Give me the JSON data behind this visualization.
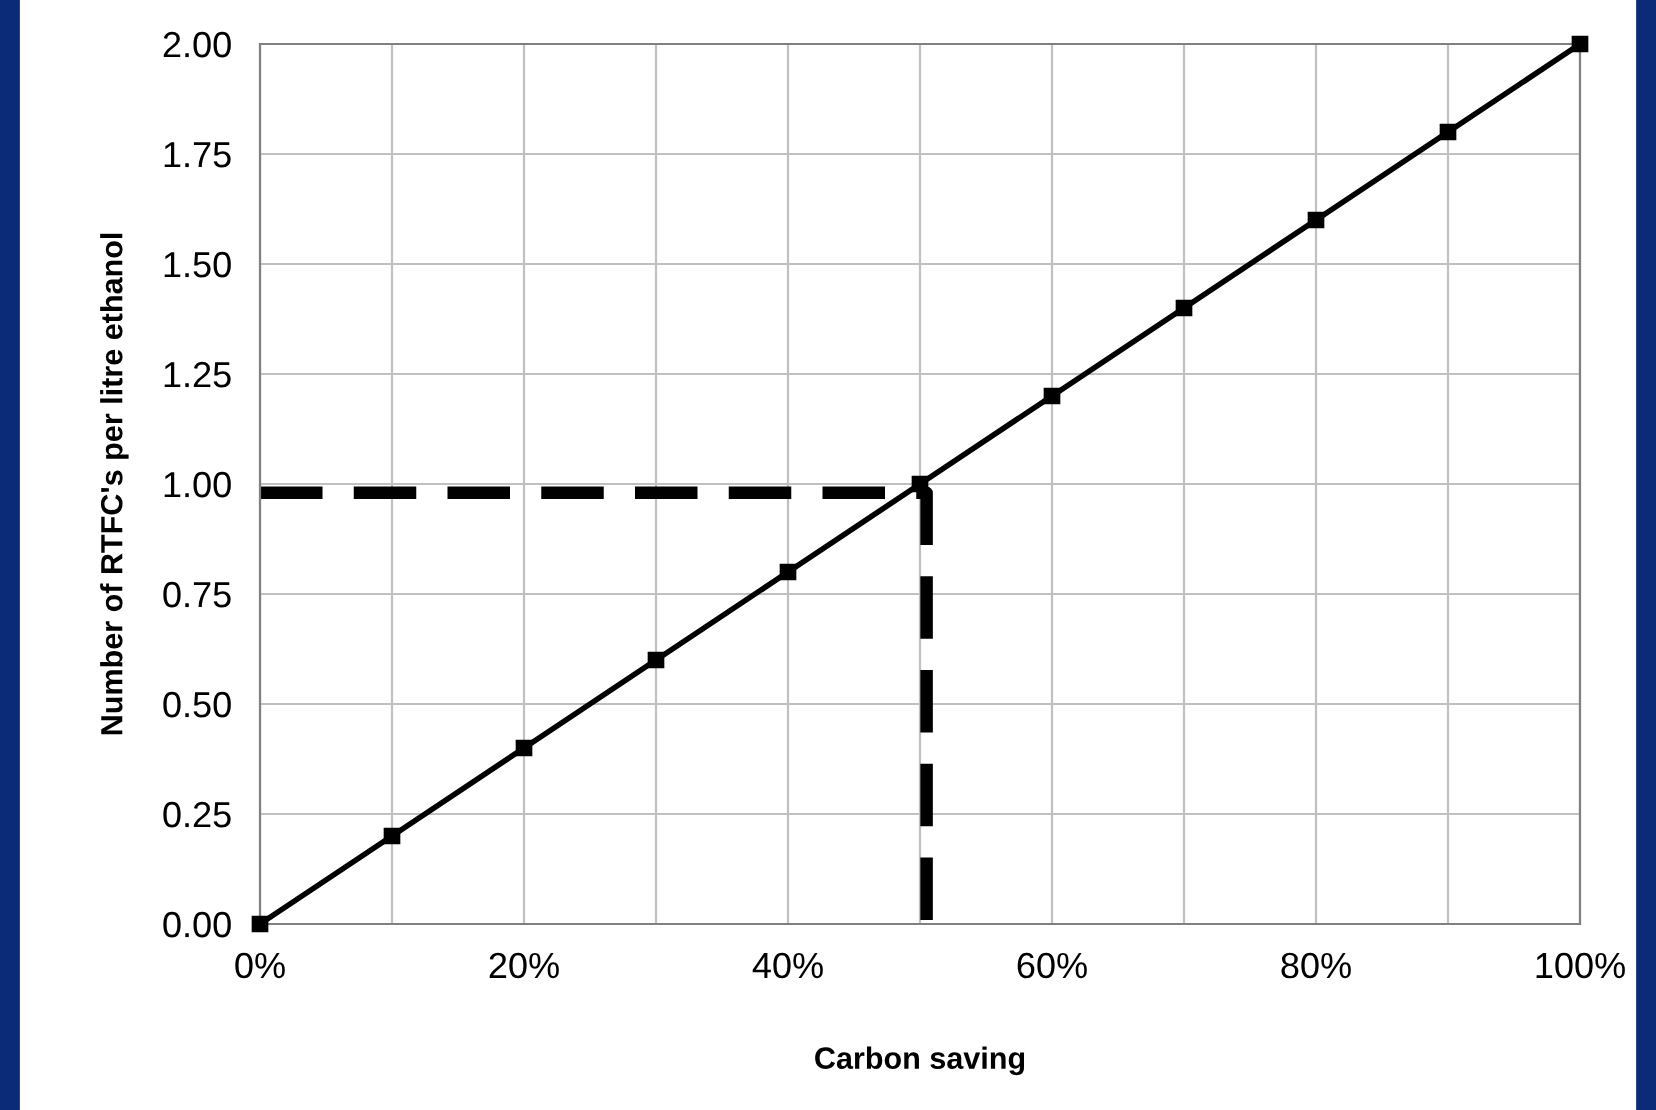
{
  "chart_data": {
    "type": "line",
    "xlabel": "Carbon saving",
    "ylabel": "Number of RTFC's per litre ethanol",
    "xlim": [
      0,
      100
    ],
    "ylim": [
      0,
      2
    ],
    "xticks": [
      {
        "value": 0,
        "label": "0%"
      },
      {
        "value": 10,
        "label": null
      },
      {
        "value": 20,
        "label": "20%"
      },
      {
        "value": 30,
        "label": null
      },
      {
        "value": 40,
        "label": "40%"
      },
      {
        "value": 50,
        "label": null
      },
      {
        "value": 60,
        "label": "60%"
      },
      {
        "value": 70,
        "label": null
      },
      {
        "value": 80,
        "label": "80%"
      },
      {
        "value": 90,
        "label": null
      },
      {
        "value": 100,
        "label": "100%"
      }
    ],
    "yticks": [
      {
        "value": 0,
        "label": "0.00"
      },
      {
        "value": 0.25,
        "label": "0.25"
      },
      {
        "value": 0.5,
        "label": "0.50"
      },
      {
        "value": 0.75,
        "label": "0.75"
      },
      {
        "value": 1,
        "label": "1.00"
      },
      {
        "value": 1.25,
        "label": "1.25"
      },
      {
        "value": 1.5,
        "label": "1.50"
      },
      {
        "value": 1.75,
        "label": "1.75"
      },
      {
        "value": 2,
        "label": "2.00"
      }
    ],
    "grid": true,
    "legend": false,
    "series": [
      {
        "color": "#000000",
        "marker": "square",
        "line_style": "solid",
        "x": [
          0,
          10,
          20,
          30,
          40,
          50,
          60,
          70,
          80,
          90,
          100
        ],
        "values": [
          0,
          0.2,
          0.4,
          0.6,
          0.8,
          1.0,
          1.2,
          1.4,
          1.6,
          1.8,
          2.0
        ]
      },
      {
        "color": "#000000",
        "marker": "none",
        "line_style": "dashed",
        "x": [
          0,
          50.5,
          50.5
        ],
        "values": [
          0.98,
          0.98,
          0
        ]
      }
    ]
  }
}
